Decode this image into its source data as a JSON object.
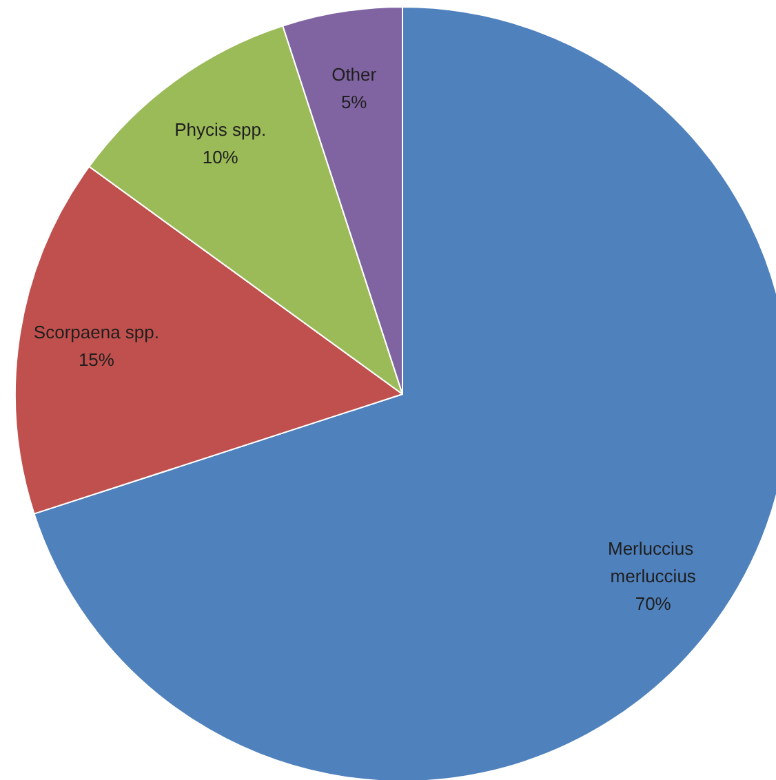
{
  "chart_data": {
    "type": "pie",
    "categories": [
      "Merluccius merluccius",
      "Scorpaena spp.",
      "Phycis spp.",
      "Other"
    ],
    "values": [
      70,
      15,
      10,
      5
    ],
    "colors": [
      "#4f81bd",
      "#c0504d",
      "#9bbb59",
      "#8064a2"
    ],
    "value_labels": [
      "70%",
      "15%",
      "10%",
      "5%"
    ],
    "legend": false
  }
}
